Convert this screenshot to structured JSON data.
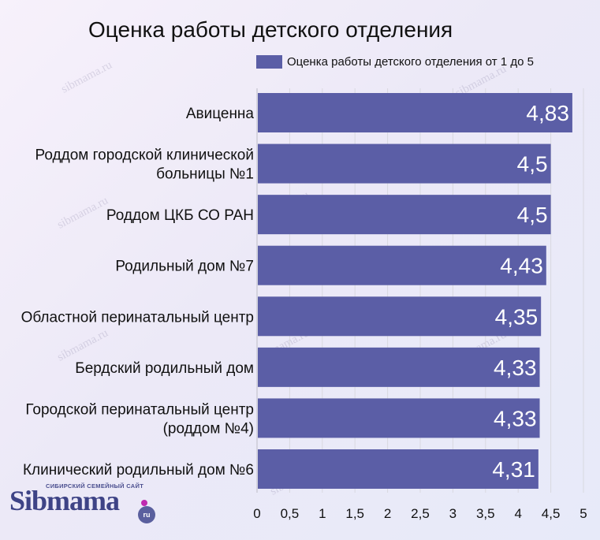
{
  "page": {
    "title": "Оценка работы детского отделения",
    "watermark_text": "sibmama.ru"
  },
  "logo": {
    "tagline": "СИБИРСКИЙ СЕМЕЙНЫЙ САЙТ",
    "name": "Sibmama",
    "suffix": "ru"
  },
  "colors": {
    "bar": "#5b5ea6",
    "bar_label": "#ffffff",
    "grid": "#d9d9e0",
    "text": "#111111"
  },
  "chart_data": {
    "type": "bar",
    "orientation": "horizontal",
    "title": "Оценка работы детского отделения",
    "categories": [
      [
        "Авиценна"
      ],
      [
        "Роддом городской клинической",
        "больницы №1"
      ],
      [
        "Роддом ЦКБ СО РАН"
      ],
      [
        "Родильный дом №7"
      ],
      [
        "Областной перинатальный центр"
      ],
      [
        "Бердский родильный дом"
      ],
      [
        "Городской перинатальный центр",
        "(роддом №4)"
      ],
      [
        "Клинический родильный дом №6"
      ]
    ],
    "series": [
      {
        "name": "Оценка работы детского отделения от 1 до 5",
        "values": [
          4.83,
          4.5,
          4.5,
          4.43,
          4.35,
          4.33,
          4.33,
          4.31
        ],
        "value_labels": [
          "4,83",
          "4,5",
          "4,5",
          "4,43",
          "4,35",
          "4,33",
          "4,33",
          "4,31"
        ]
      }
    ],
    "xlim": [
      0,
      5
    ],
    "xticks": [
      0,
      0.5,
      1,
      1.5,
      2,
      2.5,
      3,
      3.5,
      4,
      4.5,
      5
    ],
    "xtick_labels": [
      "0",
      "0,5",
      "1",
      "1,5",
      "2",
      "2,5",
      "3",
      "3,5",
      "4",
      "4,5",
      "5"
    ],
    "grid": true,
    "legend_position": "top"
  }
}
